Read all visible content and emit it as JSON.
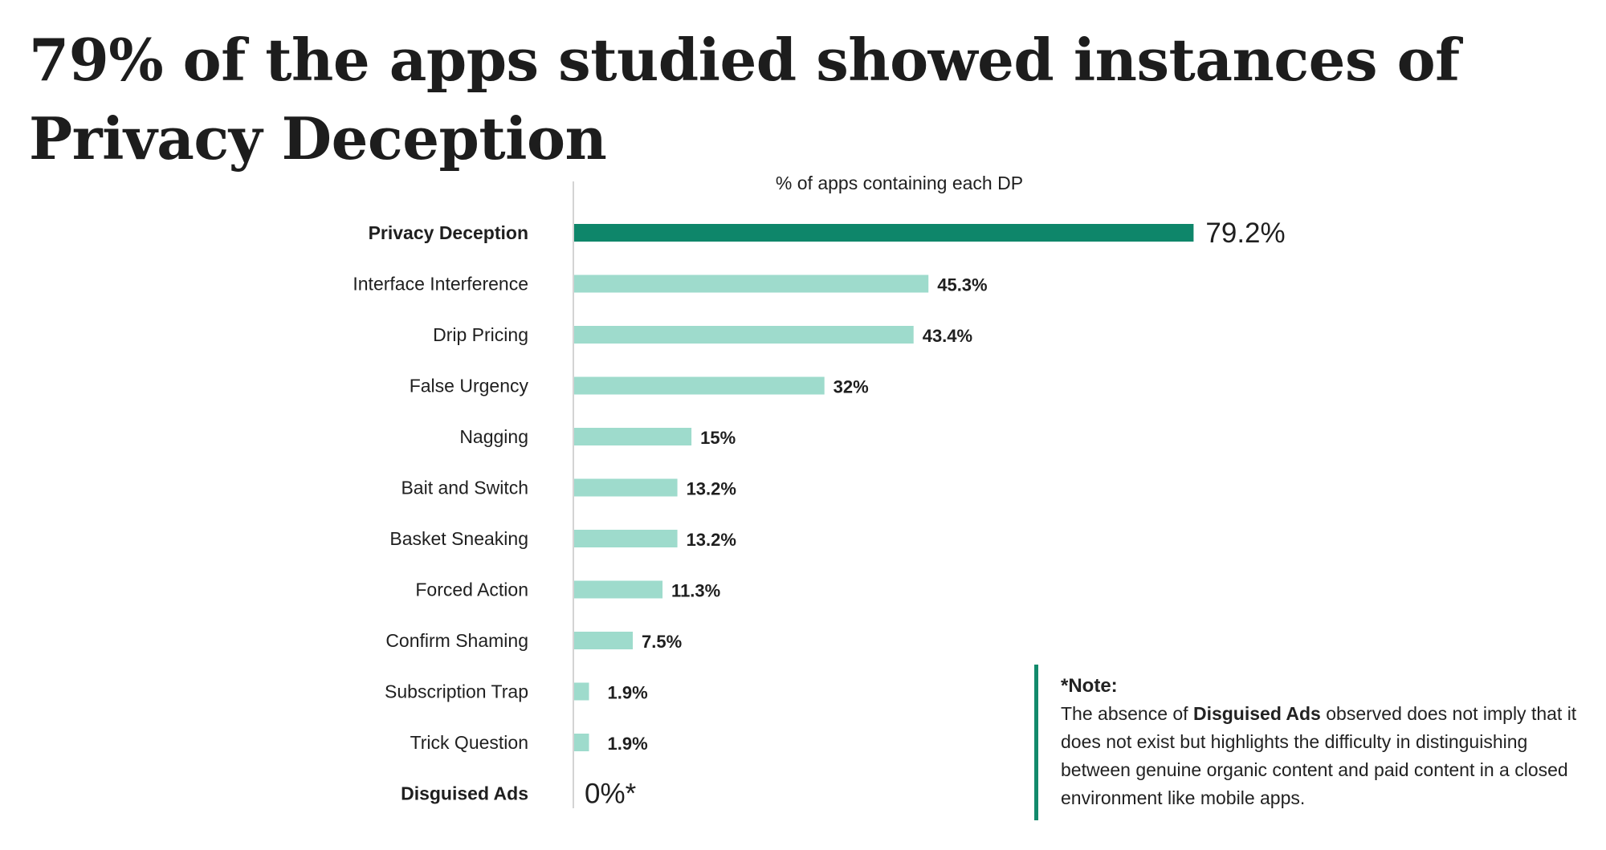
{
  "title": "79% of the apps studied showed instances of Privacy Deception",
  "chart_data": {
    "type": "bar",
    "orientation": "horizontal",
    "title": "% of apps containing each DP",
    "xlabel": "",
    "ylabel": "",
    "xlim": [
      0,
      100
    ],
    "categories": [
      "Privacy Deception",
      "Interface Interference",
      "Drip Pricing",
      "False Urgency",
      "Nagging",
      "Bait and Switch",
      "Basket Sneaking",
      "Forced Action",
      "Confirm Shaming",
      "Subscription Trap",
      "Trick Question",
      "Disguised Ads"
    ],
    "values": [
      79.2,
      45.3,
      43.4,
      32,
      15,
      13.2,
      13.2,
      11.3,
      7.5,
      1.9,
      1.9,
      0
    ],
    "value_labels": [
      "79.2%",
      "45.3%",
      "43.4%",
      "32%",
      "15%",
      "13.2%",
      "13.2%",
      "11.3%",
      "7.5%",
      "1.9%",
      "1.9%",
      "0%*"
    ],
    "highlighted": [
      "Privacy Deception",
      "Disguised Ads"
    ],
    "colors": {
      "highlight": "#0e866a",
      "default": "#9edbcc",
      "axis": "#d4d4d4",
      "text": "#1f1f1f"
    }
  },
  "note": {
    "heading": "*Note:",
    "text_before": "The absence of ",
    "bold": "Disguised Ads",
    "text_after": " observed does not imply that it does not exist but highlights the difficulty in distinguishing between genuine organic content and paid content in a closed environment like mobile apps."
  }
}
